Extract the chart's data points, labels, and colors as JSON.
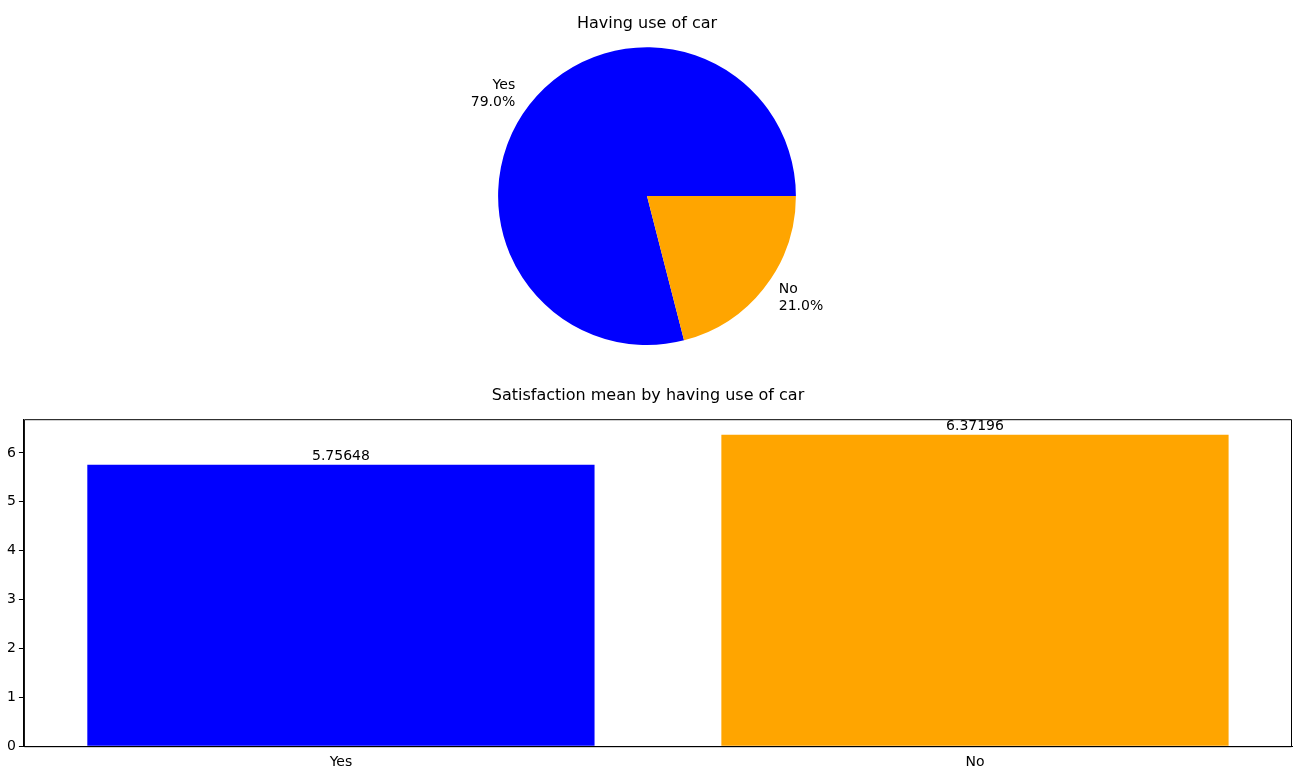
{
  "chart_data": [
    {
      "type": "pie",
      "title": "Having use of car",
      "categories": [
        "Yes",
        "No"
      ],
      "values": [
        79,
        21
      ],
      "colors": [
        "#0000ff",
        "#ffa500"
      ],
      "value_labels": [
        "79.0%",
        "21.0%"
      ]
    },
    {
      "type": "bar",
      "title": "Satisfaction mean by having use of car",
      "categories": [
        "Yes",
        "No"
      ],
      "values": [
        5.75648,
        6.37196
      ],
      "colors": [
        "#0000ff",
        "#ffa500"
      ],
      "ylim": [
        0,
        6.69
      ],
      "yticks": [
        0,
        1,
        2,
        3,
        4,
        5,
        6
      ],
      "data_labels": true
    }
  ]
}
